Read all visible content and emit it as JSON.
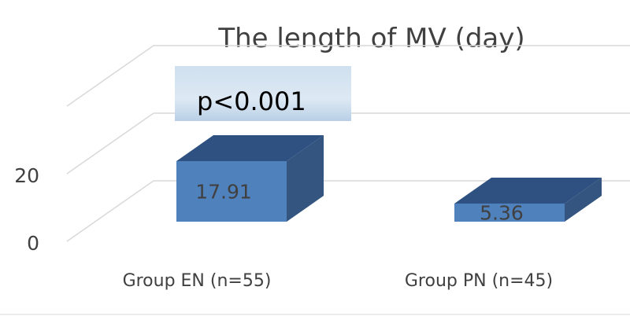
{
  "chart_data": {
    "type": "bar",
    "title": "The length of MV (day)",
    "categories": [
      "Group EN (n=55)",
      "Group PN (n=45)"
    ],
    "values": [
      17.91,
      5.36
    ],
    "data_labels": [
      "17.91",
      "5.36"
    ],
    "y_ticks": [
      "0",
      "20"
    ],
    "ylim": [
      0,
      40
    ],
    "grid": true,
    "three_d": true,
    "bar_color": "#4f81bd",
    "annotation": "p<0.001"
  }
}
